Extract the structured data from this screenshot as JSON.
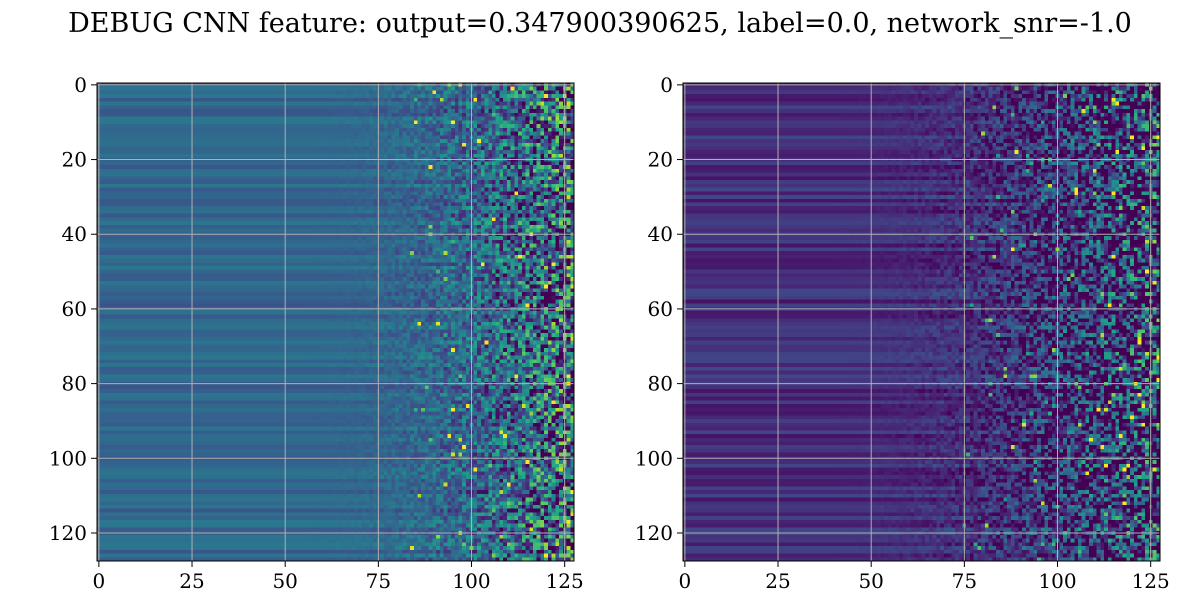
{
  "figure": {
    "title": "DEBUG CNN feature: output=0.347900390625, label=0.0, network_snr=-1.0"
  },
  "chart_data": [
    {
      "type": "heatmap",
      "panel": "left",
      "colormap": "viridis",
      "rows": 128,
      "cols": 128,
      "xlim": [
        -0.5,
        127.5
      ],
      "ylim": [
        127.5,
        -0.5
      ],
      "xticks": [
        0,
        25,
        50,
        75,
        100,
        125
      ],
      "yticks": [
        0,
        20,
        40,
        60,
        80,
        100,
        120
      ],
      "xtick_labels": [
        "0",
        "25",
        "50",
        "75",
        "100",
        "125"
      ],
      "ytick_labels": [
        "0",
        "20",
        "40",
        "60",
        "80",
        "100",
        "120"
      ],
      "grid": true,
      "trend": "smooth horizontal bands at low x, increasingly noisy toward high x; bright pixels near x≈118-124"
    },
    {
      "type": "heatmap",
      "panel": "right",
      "colormap": "viridis",
      "rows": 128,
      "cols": 128,
      "xlim": [
        -0.5,
        127.5
      ],
      "ylim": [
        127.5,
        -0.5
      ],
      "xticks": [
        0,
        25,
        50,
        75,
        100,
        125
      ],
      "yticks": [
        0,
        20,
        40,
        60,
        80,
        100,
        120
      ],
      "xtick_labels": [
        "0",
        "25",
        "50",
        "75",
        "100",
        "125"
      ],
      "ytick_labels": [
        "0",
        "20",
        "40",
        "60",
        "80",
        "100",
        "120"
      ],
      "grid": true,
      "trend": "dark horizontal bands at low x, speckled noise beyond x≈50"
    }
  ]
}
